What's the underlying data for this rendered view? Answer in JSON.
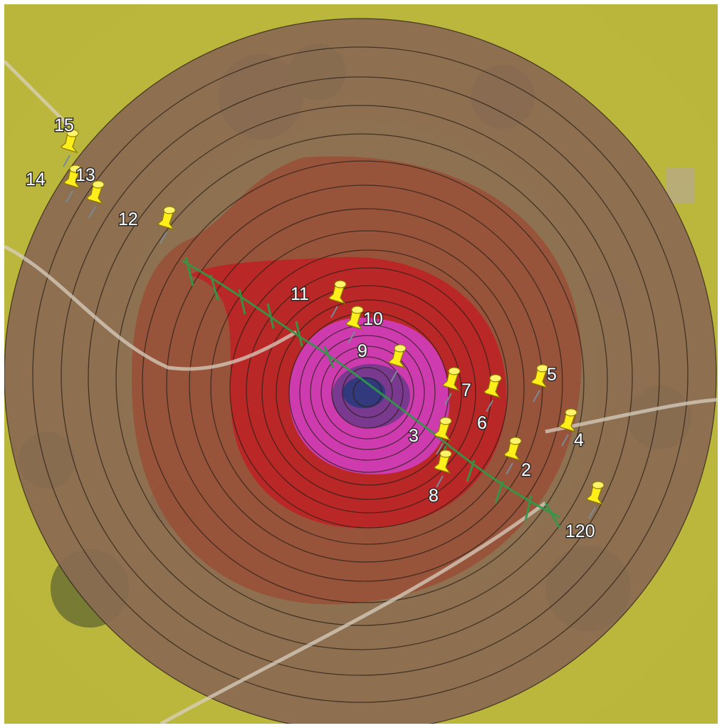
{
  "map": {
    "colors": {
      "outer_zone": "#d8d63a",
      "brown_zone": "#9a5a3a",
      "red_zone": "#c41820",
      "magenta_zone": "#d040c8",
      "pipeline": "#2e9a48",
      "pin": "#ffee1a"
    },
    "pins": [
      {
        "label": "15"
      },
      {
        "label": "14"
      },
      {
        "label": "13"
      },
      {
        "label": "12"
      },
      {
        "label": "11"
      },
      {
        "label": "10"
      },
      {
        "label": "9"
      },
      {
        "label": "7"
      },
      {
        "label": "6"
      },
      {
        "label": "5"
      },
      {
        "label": "4"
      },
      {
        "label": "3"
      },
      {
        "label": "2"
      },
      {
        "label": "8"
      },
      {
        "label": "120"
      }
    ]
  }
}
